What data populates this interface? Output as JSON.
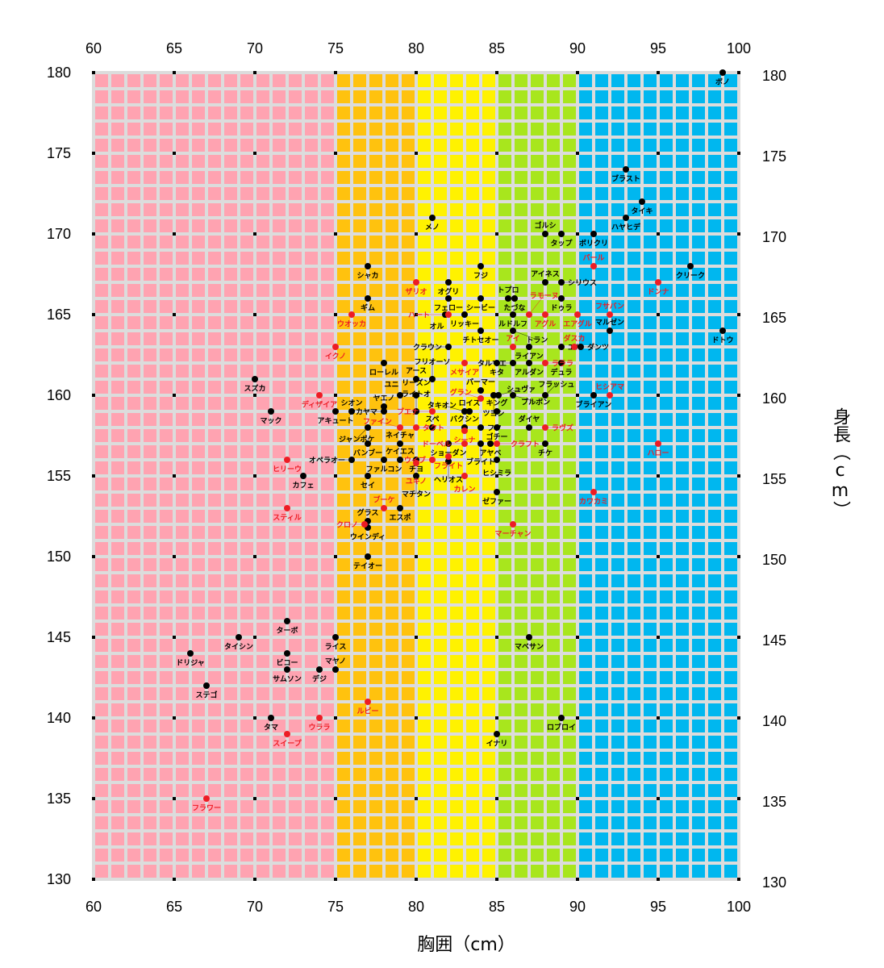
{
  "chart_data": {
    "type": "scatter",
    "xlabel": "胸囲（cm）",
    "ylabel": "身長（cm）",
    "xlim": [
      60,
      100
    ],
    "ylim": [
      130,
      180
    ],
    "xticks": [
      60,
      65,
      70,
      75,
      80,
      85,
      90,
      95,
      100
    ],
    "yticks": [
      130,
      135,
      140,
      145,
      150,
      155,
      160,
      165,
      170,
      175,
      180
    ],
    "grid": true,
    "bands": [
      {
        "from": 60,
        "to": 75,
        "color": "#ffa3b1"
      },
      {
        "from": 75,
        "to": 80,
        "color": "#ffc20e"
      },
      {
        "from": 80,
        "to": 85,
        "color": "#fff200"
      },
      {
        "from": 85,
        "to": 90,
        "color": "#a8e61d"
      },
      {
        "from": 90,
        "to": 100,
        "color": "#00b7ef"
      }
    ],
    "colors": {
      "grid": "#dcdcdc",
      "black": "#000000",
      "red": "#ed1c24"
    },
    "series": [
      {
        "name": "black",
        "color": "#000000",
        "points": [
          {
            "label": "ボノ",
            "x": 99,
            "y": 180
          },
          {
            "label": "ブラスト",
            "x": 93,
            "y": 174
          },
          {
            "label": "タイキ",
            "x": 94,
            "y": 172
          },
          {
            "label": "ハヤヒデ",
            "x": 93,
            "y": 171
          },
          {
            "label": "メノ",
            "x": 81,
            "y": 171
          },
          {
            "label": "ゴルシ",
            "x": 88,
            "y": 170
          },
          {
            "label": "タップ",
            "x": 89,
            "y": 170
          },
          {
            "label": "ボリクリ",
            "x": 91,
            "y": 170
          },
          {
            "label": "フジ",
            "x": 84,
            "y": 168
          },
          {
            "label": "シャカ",
            "x": 77,
            "y": 168
          },
          {
            "label": "クリーク",
            "x": 97,
            "y": 168
          },
          {
            "label": "オグリ",
            "x": 82,
            "y": 167
          },
          {
            "label": "アイネス",
            "x": 88,
            "y": 167
          },
          {
            "label": "シリウス",
            "x": 89,
            "y": 167
          },
          {
            "label": "ギム",
            "x": 77,
            "y": 166
          },
          {
            "label": "フェロー",
            "x": 82,
            "y": 166
          },
          {
            "label": "シービー",
            "x": 84,
            "y": 166
          },
          {
            "label": "トプロ",
            "x": 85.7,
            "y": 166
          },
          {
            "label": "たづな",
            "x": 86.1,
            "y": 166
          },
          {
            "label": "ドゥラ",
            "x": 89,
            "y": 166
          },
          {
            "label": "オル",
            "x": 81.8,
            "y": 165
          },
          {
            "label": "リッキー",
            "x": 83,
            "y": 165
          },
          {
            "label": "ルドルフ",
            "x": 86,
            "y": 165
          },
          {
            "label": "チトセオー",
            "x": 84,
            "y": 164
          },
          {
            "label": "トラン",
            "x": 86,
            "y": 164
          },
          {
            "label": "マルゼン",
            "x": 92,
            "y": 164
          },
          {
            "label": "ドトウ",
            "x": 99,
            "y": 164
          },
          {
            "label": "クラウン",
            "x": 82,
            "y": 163
          },
          {
            "label": "ライアン",
            "x": 87,
            "y": 163
          },
          {
            "label": "エル",
            "x": 89,
            "y": 163
          },
          {
            "label": "ダンツ",
            "x": 90.2,
            "y": 163
          },
          {
            "label": "ローレル",
            "x": 78,
            "y": 162
          },
          {
            "label": "キタ",
            "x": 85,
            "y": 162
          },
          {
            "label": "タルマエ",
            "x": 86,
            "y": 162
          },
          {
            "label": "アルダン",
            "x": 87,
            "y": 162
          },
          {
            "label": "デュラ",
            "x": 89,
            "y": 162
          },
          {
            "label": "スズカ",
            "x": 70,
            "y": 161
          },
          {
            "label": "アース",
            "x": 80,
            "y": 161
          },
          {
            "label": "フリオーソ",
            "x": 81,
            "y": 161
          },
          {
            "label": "パーマー",
            "x": 84,
            "y": 160.3
          },
          {
            "label": "ユニ",
            "x": 79,
            "y": 160
          },
          {
            "label": "リーズン",
            "x": 80,
            "y": 160
          },
          {
            "label": "ツヨシ",
            "x": 84.8,
            "y": 160
          },
          {
            "label": "シュヴァ",
            "x": 85.1,
            "y": 160
          },
          {
            "label": "ブルボン",
            "x": 86,
            "y": 160
          },
          {
            "label": "フラッシュ",
            "x": 88,
            "y": 160
          },
          {
            "label": "ブライアン",
            "x": 91,
            "y": 160
          },
          {
            "label": "マック",
            "x": 71,
            "y": 159
          },
          {
            "label": "アキュート",
            "x": 75,
            "y": 159
          },
          {
            "label": "シオン",
            "x": 76,
            "y": 159
          },
          {
            "label": "ヤエノ",
            "x": 78,
            "y": 159.3
          },
          {
            "label": "ナカヤマ",
            "x": 78,
            "y": 159
          },
          {
            "label": "ライトオ",
            "x": 80,
            "y": 159
          },
          {
            "label": "タキオン",
            "x": 83,
            "y": 159
          },
          {
            "label": "ロイス",
            "x": 83.3,
            "y": 159
          },
          {
            "label": "キング",
            "x": 85,
            "y": 159
          },
          {
            "label": "ジャンポケ",
            "x": 77,
            "y": 158
          },
          {
            "label": "スペ",
            "x": 81,
            "y": 158
          },
          {
            "label": "バクシン",
            "x": 83,
            "y": 158
          },
          {
            "label": "フク",
            "x": 84,
            "y": 158
          },
          {
            "label": "ゴチー",
            "x": 85,
            "y": 158
          },
          {
            "label": "ダイヤ",
            "x": 87,
            "y": 158
          },
          {
            "label": "バンブー",
            "x": 77,
            "y": 157
          },
          {
            "label": "ネイチャ",
            "x": 79,
            "y": 157
          },
          {
            "label": "ショーダン",
            "x": 82,
            "y": 157
          },
          {
            "label": "ブライト",
            "x": 84,
            "y": 157
          },
          {
            "label": "アヤベ",
            "x": 84.6,
            "y": 157
          },
          {
            "label": "チケ",
            "x": 88,
            "y": 157
          },
          {
            "label": "オペラオー",
            "x": 76,
            "y": 156
          },
          {
            "label": "ファルコン",
            "x": 78,
            "y": 156
          },
          {
            "label": "ケイエス",
            "x": 79,
            "y": 156
          },
          {
            "label": "チヨ",
            "x": 80,
            "y": 156
          },
          {
            "label": "ヒシミラ",
            "x": 85,
            "y": 156
          },
          {
            "label": "ヘリオス",
            "x": 82,
            "y": 155.9
          },
          {
            "label": "カフェ",
            "x": 73,
            "y": 155
          },
          {
            "label": "セイ",
            "x": 77,
            "y": 155
          },
          {
            "label": "マチタン",
            "x": 80,
            "y": 155
          },
          {
            "label": "ゼファー",
            "x": 85,
            "y": 154
          },
          {
            "label": "エスポ",
            "x": 79,
            "y": 153
          },
          {
            "label": "グラス",
            "x": 77,
            "y": 152.2
          },
          {
            "label": "ウインディ",
            "x": 77,
            "y": 151.8
          },
          {
            "label": "テイオー",
            "x": 77,
            "y": 150
          },
          {
            "label": "ターボ",
            "x": 72,
            "y": 146
          },
          {
            "label": "タイシン",
            "x": 69,
            "y": 145
          },
          {
            "label": "ライス",
            "x": 75,
            "y": 145
          },
          {
            "label": "マベサン",
            "x": 87,
            "y": 145
          },
          {
            "label": "ドリジャ",
            "x": 66,
            "y": 144
          },
          {
            "label": "ビコー",
            "x": 72,
            "y": 144
          },
          {
            "label": "サムソン",
            "x": 72,
            "y": 143
          },
          {
            "label": "デジ",
            "x": 74,
            "y": 143
          },
          {
            "label": "マヤノ",
            "x": 75,
            "y": 143
          },
          {
            "label": "ステゴ",
            "x": 67,
            "y": 142
          },
          {
            "label": "タマ",
            "x": 71,
            "y": 140
          },
          {
            "label": "ロブロイ",
            "x": 89,
            "y": 140
          },
          {
            "label": "イナリ",
            "x": 85,
            "y": 139
          }
        ]
      },
      {
        "name": "red",
        "color": "#ed1c24",
        "points": [
          {
            "label": "パール",
            "x": 91,
            "y": 168
          },
          {
            "label": "ザリオ",
            "x": 80,
            "y": 167
          },
          {
            "label": "ドンナ",
            "x": 95,
            "y": 167
          },
          {
            "label": "ウオッカ",
            "x": 76,
            "y": 165
          },
          {
            "label": "ハート",
            "x": 82,
            "y": 165
          },
          {
            "label": "ラモーヌ",
            "x": 87,
            "y": 165
          },
          {
            "label": "アグル",
            "x": 88,
            "y": 165
          },
          {
            "label": "エアグル",
            "x": 90,
            "y": 165
          },
          {
            "label": "フサバン",
            "x": 92,
            "y": 165
          },
          {
            "label": "イクノ",
            "x": 75,
            "y": 163
          },
          {
            "label": "アイ",
            "x": 86,
            "y": 163
          },
          {
            "label": "ダスカ",
            "x": 89.8,
            "y": 163
          },
          {
            "label": "メサイア",
            "x": 83,
            "y": 162
          },
          {
            "label": "ラララ",
            "x": 88,
            "y": 162
          },
          {
            "label": "ディザイア",
            "x": 74,
            "y": 160
          },
          {
            "label": "グラン",
            "x": 84,
            "y": 159.8
          },
          {
            "label": "ヒシアマ",
            "x": 92,
            "y": 160
          },
          {
            "label": "ブエナ",
            "x": 81,
            "y": 159
          },
          {
            "label": "ファイン",
            "x": 79,
            "y": 158
          },
          {
            "label": "タクト",
            "x": 80,
            "y": 158
          },
          {
            "label": "ラヴズ",
            "x": 88,
            "y": 158
          },
          {
            "label": "シーナ",
            "x": 83,
            "y": 157.8
          },
          {
            "label": "ドーベル",
            "x": 83,
            "y": 157
          },
          {
            "label": "クラフト",
            "x": 85,
            "y": 157
          },
          {
            "label": "ハロー",
            "x": 95,
            "y": 157
          },
          {
            "label": "ウイブ",
            "x": 81,
            "y": 156
          },
          {
            "label": "フライト",
            "x": 82,
            "y": 156.2
          },
          {
            "label": "ユキノ",
            "x": 80,
            "y": 155.8
          },
          {
            "label": "ヒリーウ",
            "x": 72,
            "y": 156
          },
          {
            "label": "カレン",
            "x": 83,
            "y": 155
          },
          {
            "label": "カワカミ",
            "x": 91,
            "y": 154
          },
          {
            "label": "スティル",
            "x": 72,
            "y": 153
          },
          {
            "label": "ブーケ",
            "x": 78,
            "y": 153
          },
          {
            "label": "クロノ",
            "x": 76.8,
            "y": 152
          },
          {
            "label": "マーチャン",
            "x": 86,
            "y": 152
          },
          {
            "label": "ルビー",
            "x": 77,
            "y": 141
          },
          {
            "label": "ウララ",
            "x": 74,
            "y": 140
          },
          {
            "label": "スイープ",
            "x": 72,
            "y": 139
          },
          {
            "label": "フラワー",
            "x": 67,
            "y": 135
          }
        ]
      }
    ]
  }
}
